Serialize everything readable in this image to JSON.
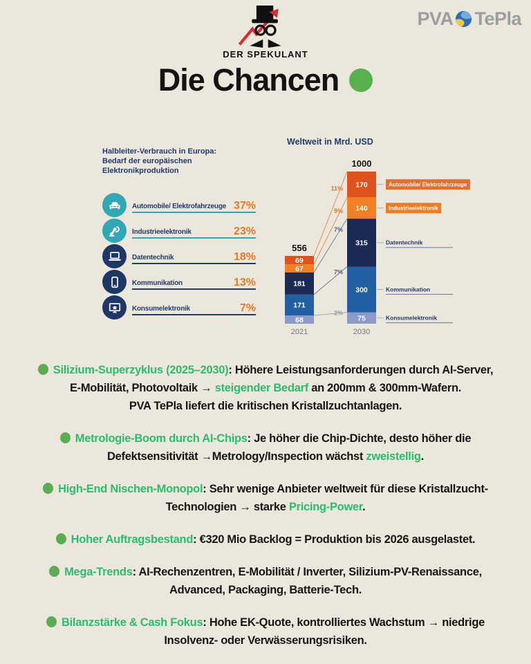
{
  "header": {
    "brand": "DER SPEKULANT",
    "pva_logo": {
      "part1": "PVA",
      "part2": "TePla"
    },
    "title": "Die Chancen"
  },
  "chart_data": [
    {
      "type": "bar",
      "title": "Halbleiter-Verbrauch in Europa: Bedarf der europäischen Elektronikproduktion",
      "title_line1": "Halbleiter-Verbrauch in Europa:",
      "title_line2": "Bedarf der europäischen Elektronikproduktion",
      "unit": "percent",
      "categories": [
        "Automobile/ Elektrofahrzeuge",
        "Industrieelektronik",
        "Datentechnik",
        "Kommunikation",
        "Konsumelektronik"
      ],
      "values": [
        37,
        23,
        18,
        13,
        7
      ],
      "items": [
        {
          "label": "Automobile/ Elektrofahrzeuge",
          "pct": "37%",
          "icon": "car-icon"
        },
        {
          "label": "Industrieelektronik",
          "pct": "23%",
          "icon": "robot-arm-icon"
        },
        {
          "label": "Datentechnik",
          "pct": "18%",
          "icon": "laptop-icon"
        },
        {
          "label": "Kommunikation",
          "pct": "13%",
          "icon": "smartphone-icon"
        },
        {
          "label": "Konsumelektronik",
          "pct": "7%",
          "icon": "smart-tv-icon"
        }
      ]
    },
    {
      "type": "bar",
      "stacked": true,
      "title": "Weltweit in Mrd. USD",
      "categories": [
        "2021",
        "2030"
      ],
      "totals": [
        556,
        1000
      ],
      "series": [
        {
          "name": "Automobile/ Elektrofahrzeuge",
          "values": [
            69,
            170
          ],
          "color": "#e0521d",
          "box_color": "#e36e2e",
          "label_style": "box"
        },
        {
          "name": "Industrieelektronik",
          "values": [
            67,
            140
          ],
          "color": "#f08122",
          "box_color": "#ee7d1f",
          "label_style": "box"
        },
        {
          "name": "Datentechnik",
          "values": [
            181,
            315
          ],
          "color": "#1b2b54",
          "label_style": "text"
        },
        {
          "name": "Kommunikation",
          "values": [
            171,
            300
          ],
          "color": "#2161a3",
          "label_style": "text"
        },
        {
          "name": "Konsumelektronik",
          "values": [
            68,
            75
          ],
          "color": "#8c9ac7",
          "label_style": "text"
        }
      ],
      "growth_labels": [
        {
          "label": "11%",
          "color": "#e0752c"
        },
        {
          "label": "9%",
          "color": "#e0752c"
        },
        {
          "label": "7%",
          "color": "#55617a"
        },
        {
          "label": "7%",
          "color": "#55617a"
        },
        {
          "label": "2%",
          "color": "#8f97a3"
        }
      ],
      "legend_position": "right",
      "grid": false
    }
  ],
  "bullets": [
    {
      "segments": [
        {
          "t": "Silizium-Superzyklus (2025–2030)",
          "c": "green"
        },
        {
          "t": ": Höhere Leistungsanforderungen durch AI-Server,",
          "c": "text"
        },
        {
          "br": true
        },
        {
          "t": "E-Mobilität, Photovoltaik → ",
          "c": "text"
        },
        {
          "t": "steigender Bedarf",
          "c": "green"
        },
        {
          "t": " an 200mm & 300mm-Wafern.",
          "c": "text"
        },
        {
          "br": true
        },
        {
          "t": "PVA TePla liefert die kritischen Kristallzuchtanlagen.",
          "c": "text"
        }
      ]
    },
    {
      "segments": [
        {
          "t": "Metrologie-Boom durch AI-Chips",
          "c": "green"
        },
        {
          "t": ": Je höher die Chip-Dichte, desto höher die",
          "c": "text"
        },
        {
          "br": true
        },
        {
          "t": "Defektsensitivität →Metrology/Inspection wächst ",
          "c": "text"
        },
        {
          "t": "zweistellig",
          "c": "green"
        },
        {
          "t": ".",
          "c": "text"
        }
      ]
    },
    {
      "segments": [
        {
          "t": "High-End Nischen-Monopol",
          "c": "green"
        },
        {
          "t": ": Sehr wenige Anbieter weltweit für diese Kristallzucht-",
          "c": "text"
        },
        {
          "br": true
        },
        {
          "t": "Technologien → starke ",
          "c": "text"
        },
        {
          "t": "Pricing-Power",
          "c": "green"
        },
        {
          "t": ".",
          "c": "text"
        }
      ]
    },
    {
      "segments": [
        {
          "t": "Hoher Auftragsbestand",
          "c": "green"
        },
        {
          "t": ": €320 Mio Backlog = Produktion bis 2026 ausgelastet.",
          "c": "text"
        }
      ]
    },
    {
      "segments": [
        {
          "t": "Mega-Trends",
          "c": "green"
        },
        {
          "t": ": AI-Rechenzentren, E-Mobilität / Inverter, Silizium-PV-Renaissance,",
          "c": "text"
        },
        {
          "br": true
        },
        {
          "t": "Advanced, Packaging, Batterie-Tech.",
          "c": "text"
        }
      ]
    },
    {
      "segments": [
        {
          "t": "Bilanzstärke & Cash Fokus",
          "c": "green"
        },
        {
          "t": ": Hohe EK-Quote, kontrolliertes Wachstum → niedrige",
          "c": "text"
        },
        {
          "br": true
        },
        {
          "t": "Insolvenz- oder Verwässerungsrisiken.",
          "c": "text"
        }
      ]
    }
  ],
  "colors": {
    "background": "#ece7dc",
    "navy": "#1f3a6d",
    "navy_icon": "#1f3765",
    "teal": "#2fa7b4",
    "orange": "#e87a25",
    "accent_green_text": "#29bd6c",
    "accent_green_dot": "#5cad52",
    "title_dot_green": "#57b14d",
    "arrow_red": "#d62f2f",
    "pva_gray": "#9b9da0"
  }
}
